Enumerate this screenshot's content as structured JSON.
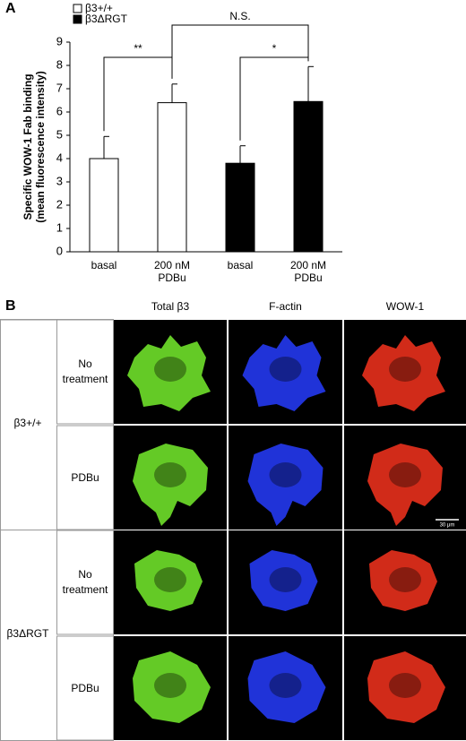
{
  "chart_data": {
    "type": "bar",
    "panel_label": "A",
    "categories": [
      "basal",
      "200 nM PDBu",
      "basal",
      "200 nM PDBu"
    ],
    "series": [
      {
        "name": "β3+/+",
        "color": "#ffffff",
        "values": [
          4.0,
          6.4,
          null,
          null
        ],
        "errors": [
          0.95,
          0.8,
          null,
          null
        ]
      },
      {
        "name": "β3ΔRGT",
        "color": "#000000",
        "values": [
          null,
          null,
          3.8,
          6.45
        ],
        "errors": [
          null,
          null,
          0.75,
          1.5
        ]
      }
    ],
    "ylabel": [
      "Specific WOW-1 Fab binding",
      "(mean fluorescence intensity)"
    ],
    "ylim": [
      0,
      9
    ],
    "yticks": [
      0,
      1,
      2,
      3,
      4,
      5,
      6,
      7,
      8,
      9
    ],
    "annotations": [
      "**",
      "N.S.",
      "*"
    ]
  },
  "panel_b": {
    "panel_label": "B",
    "columns": [
      "Total β3",
      "F-actin",
      "WOW-1"
    ],
    "groups": [
      {
        "label": "β3+/+",
        "rows": [
          "No treatment",
          "PDBu"
        ]
      },
      {
        "label": "β3ΔRGT",
        "rows": [
          "No treatment",
          "PDBu"
        ]
      }
    ],
    "channel_colors": [
      "#6fe02a",
      "#2438f0",
      "#e8301c"
    ],
    "scale_bar": "30 μm"
  }
}
